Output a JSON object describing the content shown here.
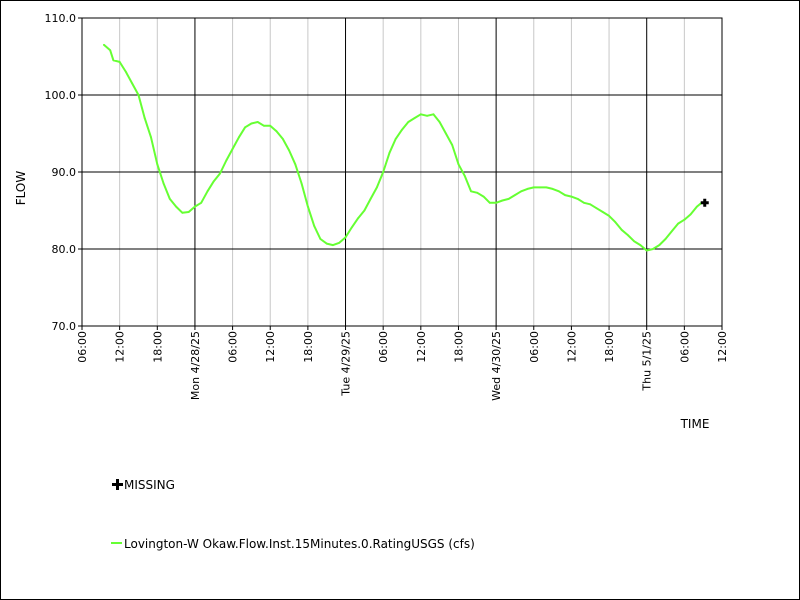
{
  "chart_data": {
    "type": "line",
    "xlabel": "TIME",
    "ylabel": "FLOW",
    "ylim": [
      70,
      110
    ],
    "yticks": [
      "70.0",
      "80.0",
      "90.0",
      "100.0",
      "110.0"
    ],
    "xlim": [
      "2025-04-27T06:00",
      "2025-05-01T12:00"
    ],
    "xticks": [
      {
        "t": "2025-04-27T06:00",
        "label": "06:00",
        "major": false
      },
      {
        "t": "2025-04-27T12:00",
        "label": "12:00",
        "major": false
      },
      {
        "t": "2025-04-27T18:00",
        "label": "18:00",
        "major": false
      },
      {
        "t": "2025-04-28T00:00",
        "label": "Mon 4/28/25",
        "major": true
      },
      {
        "t": "2025-04-28T06:00",
        "label": "06:00",
        "major": false
      },
      {
        "t": "2025-04-28T12:00",
        "label": "12:00",
        "major": false
      },
      {
        "t": "2025-04-28T18:00",
        "label": "18:00",
        "major": false
      },
      {
        "t": "2025-04-29T00:00",
        "label": "Tue 4/29/25",
        "major": true
      },
      {
        "t": "2025-04-29T06:00",
        "label": "06:00",
        "major": false
      },
      {
        "t": "2025-04-29T12:00",
        "label": "12:00",
        "major": false
      },
      {
        "t": "2025-04-29T18:00",
        "label": "18:00",
        "major": false
      },
      {
        "t": "2025-04-30T00:00",
        "label": "Wed 4/30/25",
        "major": true
      },
      {
        "t": "2025-04-30T06:00",
        "label": "06:00",
        "major": false
      },
      {
        "t": "2025-04-30T12:00",
        "label": "12:00",
        "major": false
      },
      {
        "t": "2025-04-30T18:00",
        "label": "18:00",
        "major": false
      },
      {
        "t": "2025-05-01T00:00",
        "label": "Thu 5/1/25",
        "major": true
      },
      {
        "t": "2025-05-01T06:00",
        "label": "06:00",
        "major": false
      },
      {
        "t": "2025-05-01T12:00",
        "label": "12:00",
        "major": false
      }
    ],
    "grid": true,
    "series": [
      {
        "name": "Lovington-W Okaw.Flow.Inst.15Minutes.0.RatingUSGS (cfs)",
        "color": "#66ff33",
        "points": [
          [
            "2025-04-27T09:30",
            106.5
          ],
          [
            "2025-04-27T10:30",
            105.8
          ],
          [
            "2025-04-27T11:00",
            104.5
          ],
          [
            "2025-04-27T12:00",
            104.3
          ],
          [
            "2025-04-27T13:00",
            103.0
          ],
          [
            "2025-04-27T14:00",
            101.5
          ],
          [
            "2025-04-27T15:00",
            100.0
          ],
          [
            "2025-04-27T16:00",
            97.0
          ],
          [
            "2025-04-27T17:00",
            94.5
          ],
          [
            "2025-04-27T18:00",
            91.0
          ],
          [
            "2025-04-27T19:00",
            88.5
          ],
          [
            "2025-04-27T20:00",
            86.5
          ],
          [
            "2025-04-27T21:00",
            85.5
          ],
          [
            "2025-04-27T22:00",
            84.7
          ],
          [
            "2025-04-27T23:00",
            84.8
          ],
          [
            "2025-04-28T00:00",
            85.5
          ],
          [
            "2025-04-28T01:00",
            86.0
          ],
          [
            "2025-04-28T02:00",
            87.5
          ],
          [
            "2025-04-28T03:00",
            88.8
          ],
          [
            "2025-04-28T04:00",
            89.8
          ],
          [
            "2025-04-28T05:00",
            91.5
          ],
          [
            "2025-04-28T06:00",
            93.0
          ],
          [
            "2025-04-28T07:00",
            94.5
          ],
          [
            "2025-04-28T08:00",
            95.8
          ],
          [
            "2025-04-28T09:00",
            96.3
          ],
          [
            "2025-04-28T10:00",
            96.5
          ],
          [
            "2025-04-28T11:00",
            96.0
          ],
          [
            "2025-04-28T12:00",
            96.0
          ],
          [
            "2025-04-28T13:00",
            95.3
          ],
          [
            "2025-04-28T14:00",
            94.3
          ],
          [
            "2025-04-28T15:00",
            92.8
          ],
          [
            "2025-04-28T16:00",
            91.0
          ],
          [
            "2025-04-28T17:00",
            88.5
          ],
          [
            "2025-04-28T18:00",
            85.5
          ],
          [
            "2025-04-28T19:00",
            83.0
          ],
          [
            "2025-04-28T20:00",
            81.3
          ],
          [
            "2025-04-28T21:00",
            80.7
          ],
          [
            "2025-04-28T22:00",
            80.5
          ],
          [
            "2025-04-28T23:00",
            80.8
          ],
          [
            "2025-04-29T00:00",
            81.5
          ],
          [
            "2025-04-29T01:00",
            82.8
          ],
          [
            "2025-04-29T02:00",
            84.0
          ],
          [
            "2025-04-29T03:00",
            85.0
          ],
          [
            "2025-04-29T04:00",
            86.5
          ],
          [
            "2025-04-29T05:00",
            88.0
          ],
          [
            "2025-04-29T06:00",
            90.0
          ],
          [
            "2025-04-29T07:00",
            92.5
          ],
          [
            "2025-04-29T08:00",
            94.3
          ],
          [
            "2025-04-29T09:00",
            95.5
          ],
          [
            "2025-04-29T10:00",
            96.5
          ],
          [
            "2025-04-29T11:00",
            97.0
          ],
          [
            "2025-04-29T12:00",
            97.5
          ],
          [
            "2025-04-29T13:00",
            97.3
          ],
          [
            "2025-04-29T14:00",
            97.5
          ],
          [
            "2025-04-29T15:00",
            96.5
          ],
          [
            "2025-04-29T16:00",
            95.0
          ],
          [
            "2025-04-29T17:00",
            93.5
          ],
          [
            "2025-04-29T18:00",
            91.0
          ],
          [
            "2025-04-29T19:00",
            89.5
          ],
          [
            "2025-04-29T20:00",
            87.5
          ],
          [
            "2025-04-29T21:00",
            87.3
          ],
          [
            "2025-04-29T22:00",
            86.8
          ],
          [
            "2025-04-29T23:00",
            86.0
          ],
          [
            "2025-04-30T00:00",
            86.0
          ],
          [
            "2025-04-30T01:00",
            86.3
          ],
          [
            "2025-04-30T02:00",
            86.5
          ],
          [
            "2025-04-30T03:00",
            87.0
          ],
          [
            "2025-04-30T04:00",
            87.5
          ],
          [
            "2025-04-30T05:00",
            87.8
          ],
          [
            "2025-04-30T06:00",
            88.0
          ],
          [
            "2025-04-30T07:00",
            88.0
          ],
          [
            "2025-04-30T08:00",
            88.0
          ],
          [
            "2025-04-30T09:00",
            87.8
          ],
          [
            "2025-04-30T10:00",
            87.5
          ],
          [
            "2025-04-30T11:00",
            87.0
          ],
          [
            "2025-04-30T12:00",
            86.8
          ],
          [
            "2025-04-30T13:00",
            86.5
          ],
          [
            "2025-04-30T14:00",
            86.0
          ],
          [
            "2025-04-30T15:00",
            85.8
          ],
          [
            "2025-04-30T16:00",
            85.3
          ],
          [
            "2025-04-30T17:00",
            84.8
          ],
          [
            "2025-04-30T18:00",
            84.3
          ],
          [
            "2025-04-30T19:00",
            83.5
          ],
          [
            "2025-04-30T20:00",
            82.5
          ],
          [
            "2025-04-30T21:00",
            81.8
          ],
          [
            "2025-04-30T22:00",
            81.0
          ],
          [
            "2025-04-30T23:00",
            80.5
          ],
          [
            "2025-05-01T00:00",
            79.8
          ],
          [
            "2025-05-01T01:00",
            80.0
          ],
          [
            "2025-05-01T02:00",
            80.5
          ],
          [
            "2025-05-01T03:00",
            81.3
          ],
          [
            "2025-05-01T04:00",
            82.3
          ],
          [
            "2025-05-01T05:00",
            83.3
          ],
          [
            "2025-05-01T06:00",
            83.8
          ],
          [
            "2025-05-01T07:00",
            84.5
          ],
          [
            "2025-05-01T08:00",
            85.5
          ],
          [
            "2025-05-01T08:45",
            86.0
          ]
        ]
      }
    ],
    "missing": {
      "label": "MISSING",
      "points": [
        [
          "2025-05-01T09:15",
          86.0
        ]
      ]
    }
  }
}
